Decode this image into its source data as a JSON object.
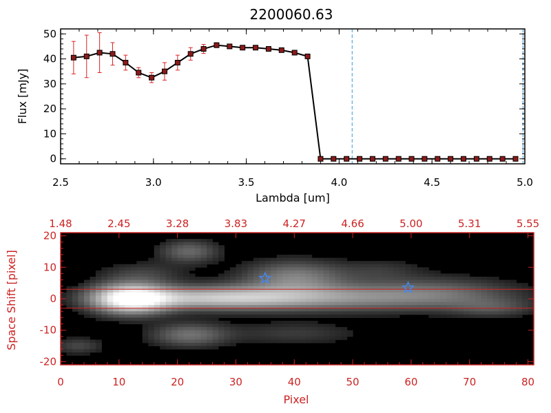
{
  "chart_data": [
    {
      "type": "line",
      "title": "2200060.63",
      "xlabel": "Lambda [um]",
      "ylabel": "Flux [mJy]",
      "xlim": [
        2.5,
        5.0
      ],
      "ylim": [
        -2,
        52
      ],
      "x_ticks": [
        "2.5",
        "3.0",
        "3.5",
        "4.0",
        "4.5",
        "5.0"
      ],
      "y_ticks": [
        "0",
        "10",
        "20",
        "30",
        "40",
        "50"
      ],
      "series": [
        {
          "x": [
            2.57,
            2.64,
            2.71,
            2.78,
            2.85,
            2.92,
            2.99,
            3.06,
            3.13,
            3.2,
            3.27,
            3.34,
            3.41,
            3.48,
            3.55,
            3.62,
            3.69,
            3.76,
            3.83,
            3.9,
            3.97,
            4.04,
            4.11,
            4.18,
            4.25,
            4.32,
            4.39,
            4.46,
            4.53,
            4.6,
            4.67,
            4.74,
            4.81,
            4.88,
            4.95
          ],
          "y": [
            40.5,
            41.0,
            42.5,
            42.0,
            38.5,
            34.5,
            32.5,
            35.0,
            38.5,
            42.0,
            44.0,
            45.5,
            45.0,
            44.5,
            44.5,
            44.0,
            43.5,
            42.5,
            41.0,
            0,
            0,
            0,
            0,
            0,
            0,
            0,
            0,
            0,
            0,
            0,
            0,
            0,
            0,
            0,
            0
          ],
          "yerr": [
            6.5,
            8.5,
            8.0,
            4.5,
            3.0,
            2.0,
            2.0,
            3.5,
            3.0,
            2.5,
            1.8,
            1.0,
            0,
            0,
            0,
            0,
            0,
            0,
            0,
            0,
            0,
            0,
            0,
            0,
            0,
            0,
            0,
            0,
            0,
            0,
            0,
            0,
            0,
            0,
            0
          ],
          "color": "#000000",
          "marker_color": "#8b1a1a",
          "errorbar_color": "#dd2222"
        }
      ],
      "vlines": [
        4.07,
        4.99
      ],
      "vline_color": "#3399dd",
      "grid": false
    },
    {
      "type": "heatmap",
      "xlabel": "Pixel",
      "ylabel": "Space Shift [pixel]",
      "xlim": [
        0,
        81
      ],
      "ylim": [
        -21,
        21
      ],
      "x_ticks": [
        "0",
        "10",
        "20",
        "30",
        "40",
        "50",
        "60",
        "70",
        "80"
      ],
      "y_ticks": [
        "-20",
        "-10",
        "0",
        "10",
        "20"
      ],
      "top_ticks": [
        "1.48",
        "2.45",
        "3.28",
        "3.83",
        "4.27",
        "4.66",
        "5.00",
        "5.31",
        "5.55"
      ],
      "colormap": "grayscale",
      "blobs": [
        {
          "x": 12,
          "y": 0,
          "sx": 4.5,
          "sy": 3.2,
          "amp": 1.0
        },
        {
          "x": 26,
          "y": 0.2,
          "sx": 11,
          "sy": 2.4,
          "amp": 0.55
        },
        {
          "x": 46,
          "y": 0.5,
          "sx": 16,
          "sy": 3.0,
          "amp": 0.42
        },
        {
          "x": 40,
          "y": 7,
          "sx": 6,
          "sy": 3.5,
          "amp": 0.38
        },
        {
          "x": 22,
          "y": 15,
          "sx": 3.5,
          "sy": 2.5,
          "amp": 0.3
        },
        {
          "x": 22,
          "y": -11.5,
          "sx": 4.5,
          "sy": 2.6,
          "amp": 0.33
        },
        {
          "x": 65,
          "y": 2,
          "sx": 9,
          "sy": 3.5,
          "amp": 0.2
        },
        {
          "x": 74,
          "y": -3,
          "sx": 5,
          "sy": 2,
          "amp": 0.18
        },
        {
          "x": 14,
          "y": 8,
          "sx": 5,
          "sy": 2.5,
          "amp": 0.15
        },
        {
          "x": 3,
          "y": -15,
          "sx": 3,
          "sy": 1.8,
          "amp": 0.18
        },
        {
          "x": 40,
          "y": -11,
          "sx": 8,
          "sy": 2.5,
          "amp": 0.14
        },
        {
          "x": 55,
          "y": 9,
          "sx": 5,
          "sy": 2.5,
          "amp": 0.12
        }
      ],
      "hlines": [
        3,
        -3
      ],
      "hline_color": "#cc2222",
      "markers": [
        {
          "x": 35,
          "y": 6.5,
          "symbol": "star",
          "color": "#4488ee"
        },
        {
          "x": 59.5,
          "y": 3.5,
          "symbol": "star",
          "color": "#4488ee"
        }
      ]
    }
  ]
}
